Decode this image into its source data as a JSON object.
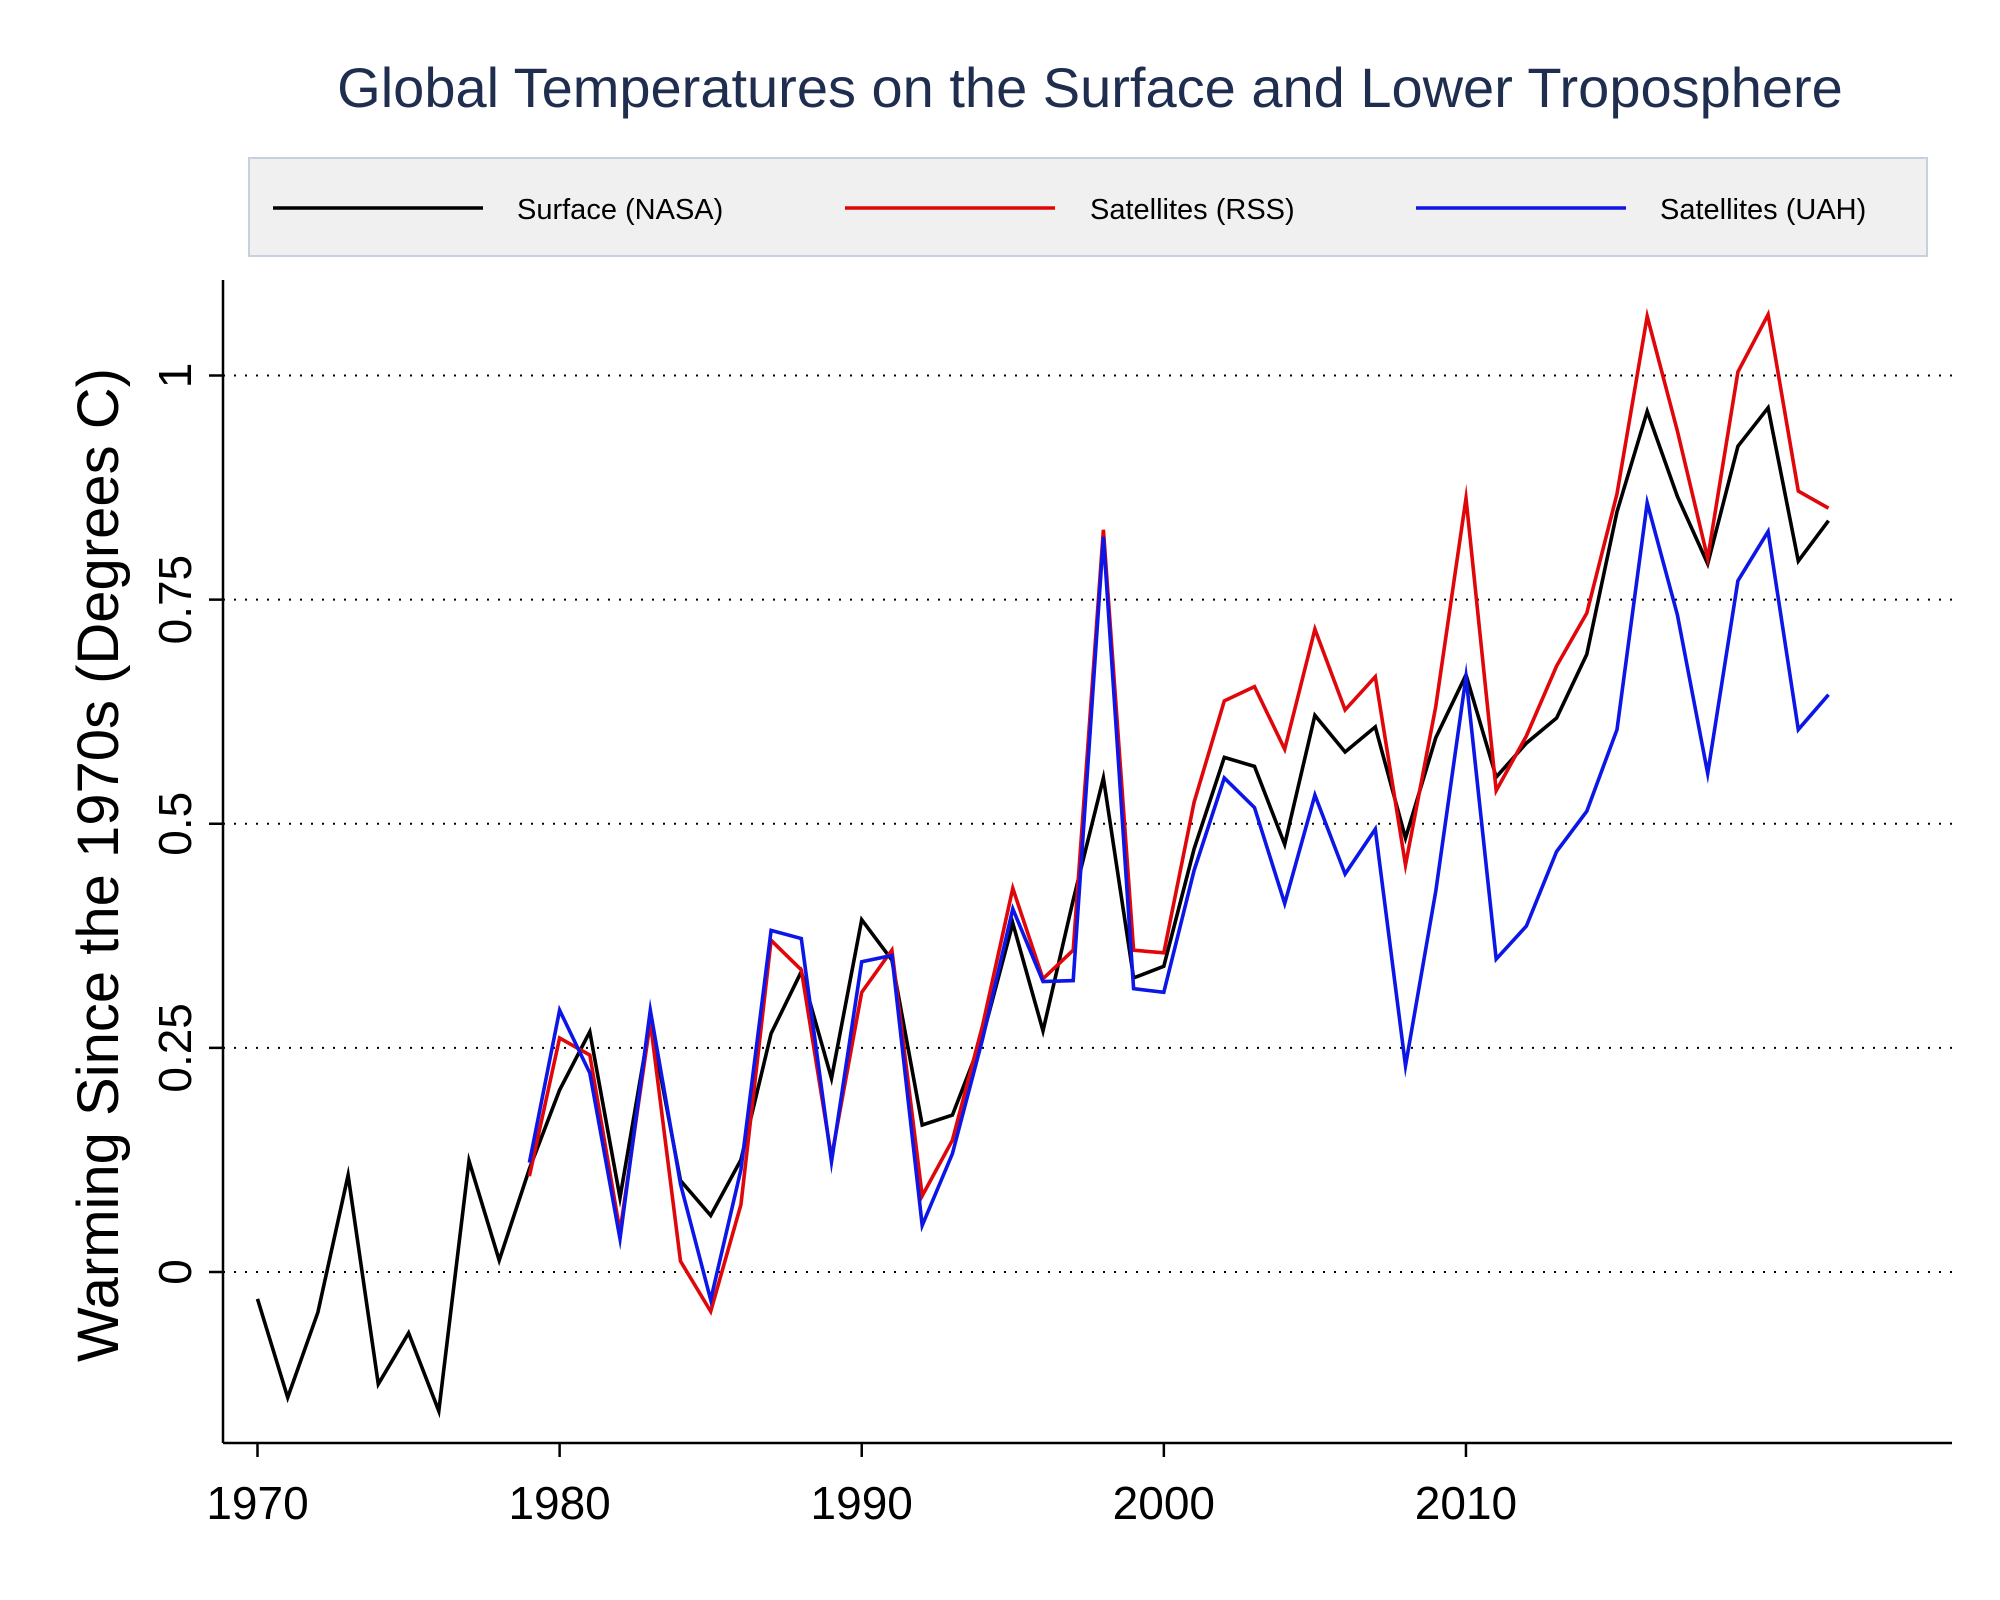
{
  "chart_data": {
    "type": "line",
    "title": "Global Temperatures on the Surface and Lower Troposphere",
    "xlabel": "",
    "ylabel": "Warming Since the 1970s (Degrees C)",
    "xlim": [
      1969,
      2026
    ],
    "ylim": [
      -0.19,
      1.11
    ],
    "x_ticks": [
      1970,
      1980,
      1990,
      2000,
      2010
    ],
    "x_tick_labels": [
      "1970",
      "1980",
      "1990",
      "2000",
      "2010"
    ],
    "y_ticks": [
      0,
      0.25,
      0.5,
      0.75,
      1
    ],
    "y_tick_labels": [
      "0",
      "0.25",
      "0.5",
      "0.75",
      "1"
    ],
    "grid": "horizontal dotted",
    "legend": "top, single row",
    "series": [
      {
        "name": "Surface (NASA)",
        "color": "#000000",
        "x": [
          1970,
          1971,
          1972,
          1973,
          1974,
          1975,
          1976,
          1977,
          1978,
          1979,
          1980,
          1981,
          1982,
          1983,
          1984,
          1985,
          1986,
          1987,
          1988,
          1989,
          1990,
          1991,
          1992,
          1993,
          1994,
          1995,
          1996,
          1997,
          1998,
          1999,
          2000,
          2001,
          2002,
          2003,
          2004,
          2005,
          2006,
          2007,
          2008,
          2009,
          2010,
          2011,
          2012,
          2013,
          2014,
          2015,
          2016,
          2017,
          2018,
          2019,
          2020,
          2021,
          2022
        ],
        "y": [
          -0.03,
          -0.14,
          -0.045,
          0.108,
          -0.125,
          -0.068,
          -0.155,
          0.124,
          0.013,
          0.115,
          0.203,
          0.268,
          0.083,
          0.28,
          0.102,
          0.063,
          0.125,
          0.266,
          0.335,
          0.216,
          0.393,
          0.348,
          0.164,
          0.175,
          0.262,
          0.389,
          0.269,
          0.415,
          0.551,
          0.328,
          0.341,
          0.472,
          0.574,
          0.564,
          0.477,
          0.621,
          0.58,
          0.608,
          0.484,
          0.596,
          0.666,
          0.552,
          0.59,
          0.618,
          0.689,
          0.848,
          0.96,
          0.865,
          0.79,
          0.921,
          0.964,
          0.793,
          0.838
        ]
      },
      {
        "name": "Satellites (RSS)",
        "color": "#e0070b",
        "x": [
          1979,
          1980,
          1981,
          1982,
          1983,
          1984,
          1985,
          1986,
          1987,
          1988,
          1989,
          1990,
          1991,
          1992,
          1993,
          1994,
          1995,
          1996,
          1997,
          1998,
          1999,
          2000,
          2001,
          2002,
          2003,
          2004,
          2005,
          2006,
          2007,
          2008,
          2009,
          2010,
          2011,
          2012,
          2013,
          2014,
          2015,
          2016,
          2017,
          2018,
          2019,
          2020,
          2021,
          2022
        ],
        "y": [
          0.107,
          0.261,
          0.242,
          0.045,
          0.279,
          0.012,
          -0.044,
          0.075,
          0.37,
          0.337,
          0.128,
          0.312,
          0.359,
          0.085,
          0.147,
          0.275,
          0.428,
          0.327,
          0.359,
          0.828,
          0.359,
          0.356,
          0.524,
          0.637,
          0.653,
          0.583,
          0.717,
          0.627,
          0.664,
          0.454,
          0.631,
          0.863,
          0.537,
          0.598,
          0.676,
          0.735,
          0.868,
          1.066,
          0.938,
          0.796,
          1.004,
          1.068,
          0.871,
          0.852
        ]
      },
      {
        "name": "Satellites (UAH)",
        "color": "#0c16e6",
        "x": [
          1979,
          1980,
          1981,
          1982,
          1983,
          1984,
          1985,
          1986,
          1987,
          1988,
          1989,
          1990,
          1991,
          1992,
          1993,
          1994,
          1995,
          1996,
          1997,
          1998,
          1999,
          2000,
          2001,
          2002,
          2003,
          2004,
          2005,
          2006,
          2007,
          2008,
          2009,
          2010,
          2011,
          2012,
          2013,
          2014,
          2015,
          2016,
          2017,
          2018,
          2019,
          2020,
          2021,
          2022
        ],
        "y": [
          0.122,
          0.292,
          0.222,
          0.037,
          0.292,
          0.098,
          -0.031,
          0.114,
          0.381,
          0.372,
          0.123,
          0.346,
          0.353,
          0.052,
          0.132,
          0.26,
          0.405,
          0.324,
          0.325,
          0.82,
          0.316,
          0.312,
          0.448,
          0.551,
          0.518,
          0.411,
          0.532,
          0.444,
          0.494,
          0.23,
          0.425,
          0.664,
          0.349,
          0.386,
          0.469,
          0.514,
          0.605,
          0.858,
          0.733,
          0.556,
          0.771,
          0.826,
          0.605,
          0.644
        ]
      }
    ]
  }
}
